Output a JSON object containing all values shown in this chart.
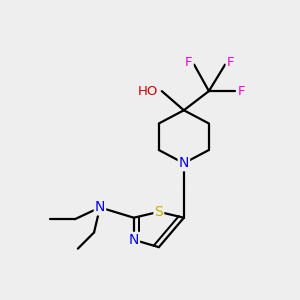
{
  "background_color": "#eeeeee",
  "bond_color": "#000000",
  "figsize": [
    3.0,
    3.0
  ],
  "dpi": 100,
  "label_colors": {
    "N": "#0000ff",
    "O": "#cc0000",
    "S": "#ccaa00",
    "F": "#ff00cc",
    "H": "#558888"
  }
}
